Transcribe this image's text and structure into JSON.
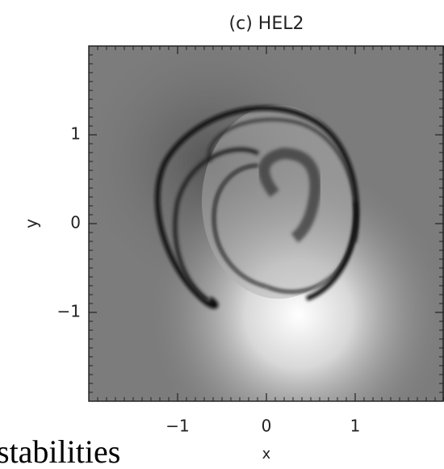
{
  "chart_data": {
    "type": "image",
    "title": "(c) HEL2",
    "x_label": "x",
    "y_label": "y",
    "xlim": [
      -2,
      2
    ],
    "ylim": [
      -2,
      2
    ],
    "xticks": [
      {
        "value": -1,
        "label": "−1"
      },
      0,
      1
    ],
    "yticks": [
      {
        "value": -1,
        "label": "−1"
      },
      0,
      1
    ]
  },
  "page_text": "stabilities"
}
